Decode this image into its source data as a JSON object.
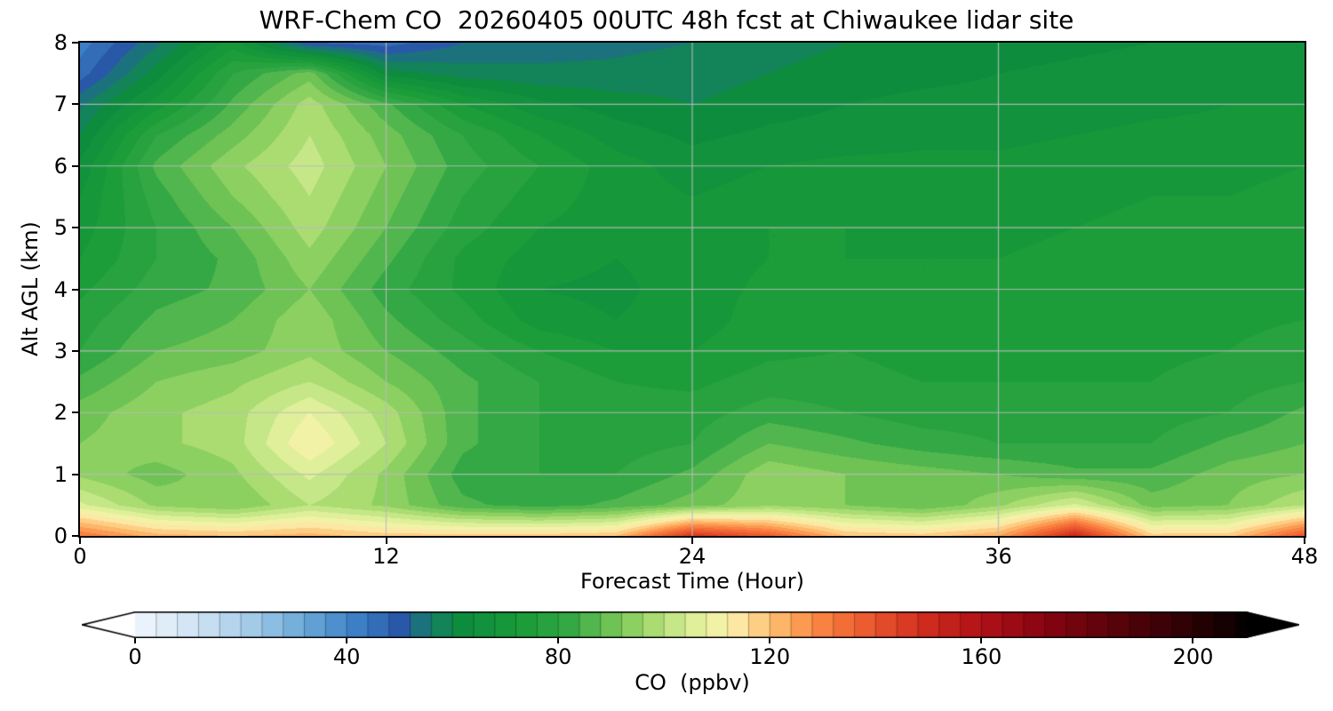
{
  "chart_data": {
    "type": "heatmap",
    "title": "WRF-Chem CO  20260405 00UTC 48h fcst at Chiwaukee lidar site",
    "xlabel": "Forecast Time (Hour)",
    "ylabel": "Alt AGL (km)",
    "colorbar_label": "CO  (ppbv)",
    "xlim": [
      0,
      48
    ],
    "ylim": [
      0,
      8
    ],
    "x_ticks": [
      0,
      12,
      24,
      36,
      48
    ],
    "y_ticks": [
      0,
      1,
      2,
      3,
      4,
      5,
      6,
      7,
      8
    ],
    "grid": true,
    "contour_interval": 4,
    "colorbar": {
      "range": [
        0,
        210
      ],
      "ticks": [
        0,
        40,
        80,
        120,
        160,
        200
      ],
      "extend": "both",
      "under_color": "#ffffff",
      "over_color": "#000000"
    },
    "colormap": [
      {
        "v": -10,
        "c": "#ffffff"
      },
      {
        "v": 2,
        "c": "#eaf3fb"
      },
      {
        "v": 12,
        "c": "#cfe3f3"
      },
      {
        "v": 22,
        "c": "#a3cbe8"
      },
      {
        "v": 32,
        "c": "#6aa8d8"
      },
      {
        "v": 42,
        "c": "#3c7fc6"
      },
      {
        "v": 50,
        "c": "#2a58a8"
      },
      {
        "v": 56,
        "c": "#157f66"
      },
      {
        "v": 62,
        "c": "#0e8c3e"
      },
      {
        "v": 72,
        "c": "#189a38"
      },
      {
        "v": 82,
        "c": "#33a844"
      },
      {
        "v": 90,
        "c": "#6fc355"
      },
      {
        "v": 97,
        "c": "#a4d96c"
      },
      {
        "v": 103,
        "c": "#cdea8d"
      },
      {
        "v": 109,
        "c": "#f0f4a6"
      },
      {
        "v": 114,
        "c": "#fce8a4"
      },
      {
        "v": 119,
        "c": "#fdc97c"
      },
      {
        "v": 125,
        "c": "#fda055"
      },
      {
        "v": 132,
        "c": "#f7753b"
      },
      {
        "v": 141,
        "c": "#e54f2a"
      },
      {
        "v": 150,
        "c": "#ce2a1d"
      },
      {
        "v": 160,
        "c": "#b01117"
      },
      {
        "v": 172,
        "c": "#860410"
      },
      {
        "v": 186,
        "c": "#56030a"
      },
      {
        "v": 200,
        "c": "#2a0104"
      },
      {
        "v": 212,
        "c": "#000000"
      }
    ],
    "x_hours": [
      0,
      3,
      6,
      9,
      12,
      15,
      18,
      21,
      24,
      27,
      30,
      33,
      36,
      39,
      42,
      45,
      48
    ],
    "y_km": [
      0,
      0.5,
      1,
      1.5,
      2,
      2.5,
      3,
      3.5,
      4,
      4.5,
      5,
      5.5,
      6,
      6.5,
      7,
      7.5,
      8
    ],
    "values_ppbv": [
      [
        132,
        122,
        120,
        122,
        118,
        118,
        118,
        120,
        148,
        138,
        120,
        118,
        124,
        152,
        118,
        118,
        140
      ],
      [
        105,
        95,
        92,
        100,
        95,
        85,
        82,
        85,
        90,
        95,
        92,
        88,
        95,
        105,
        90,
        92,
        100
      ],
      [
        95,
        90,
        95,
        105,
        95,
        82,
        80,
        80,
        85,
        95,
        92,
        90,
        88,
        85,
        85,
        90,
        92
      ],
      [
        92,
        95,
        98,
        112,
        100,
        85,
        80,
        78,
        80,
        88,
        85,
        82,
        80,
        80,
        80,
        85,
        88
      ],
      [
        90,
        95,
        98,
        108,
        98,
        85,
        80,
        78,
        78,
        82,
        80,
        78,
        78,
        78,
        78,
        80,
        85
      ],
      [
        85,
        92,
        95,
        100,
        92,
        85,
        80,
        76,
        75,
        78,
        78,
        76,
        76,
        76,
        76,
        78,
        80
      ],
      [
        80,
        88,
        90,
        95,
        88,
        82,
        76,
        72,
        72,
        75,
        76,
        74,
        74,
        74,
        75,
        76,
        78
      ],
      [
        78,
        85,
        88,
        95,
        85,
        78,
        70,
        68,
        70,
        74,
        74,
        73,
        73,
        74,
        75,
        75,
        76
      ],
      [
        75,
        82,
        85,
        92,
        82,
        75,
        68,
        67,
        70,
        73,
        73,
        72,
        72,
        73,
        74,
        74,
        75
      ],
      [
        72,
        80,
        85,
        95,
        85,
        75,
        70,
        68,
        70,
        72,
        72,
        72,
        72,
        73,
        74,
        74,
        74
      ],
      [
        70,
        80,
        88,
        98,
        88,
        78,
        72,
        70,
        70,
        72,
        72,
        71,
        71,
        72,
        73,
        73,
        74
      ],
      [
        68,
        82,
        92,
        100,
        90,
        80,
        74,
        70,
        68,
        70,
        70,
        70,
        70,
        71,
        72,
        72,
        73
      ],
      [
        65,
        85,
        95,
        102,
        92,
        82,
        76,
        70,
        66,
        68,
        69,
        69,
        69,
        70,
        71,
        71,
        72
      ],
      [
        60,
        80,
        90,
        100,
        90,
        80,
        72,
        66,
        63,
        65,
        66,
        67,
        67,
        68,
        69,
        69,
        70
      ],
      [
        55,
        70,
        85,
        98,
        85,
        72,
        65,
        62,
        60,
        62,
        64,
        65,
        65,
        66,
        67,
        68,
        68
      ],
      [
        46,
        62,
        80,
        90,
        62,
        58,
        57,
        57,
        58,
        60,
        62,
        63,
        64,
        65,
        66,
        66,
        66
      ],
      [
        42,
        55,
        70,
        48,
        46,
        52,
        54,
        55,
        56,
        58,
        60,
        61,
        62,
        63,
        64,
        65,
        65
      ]
    ]
  }
}
